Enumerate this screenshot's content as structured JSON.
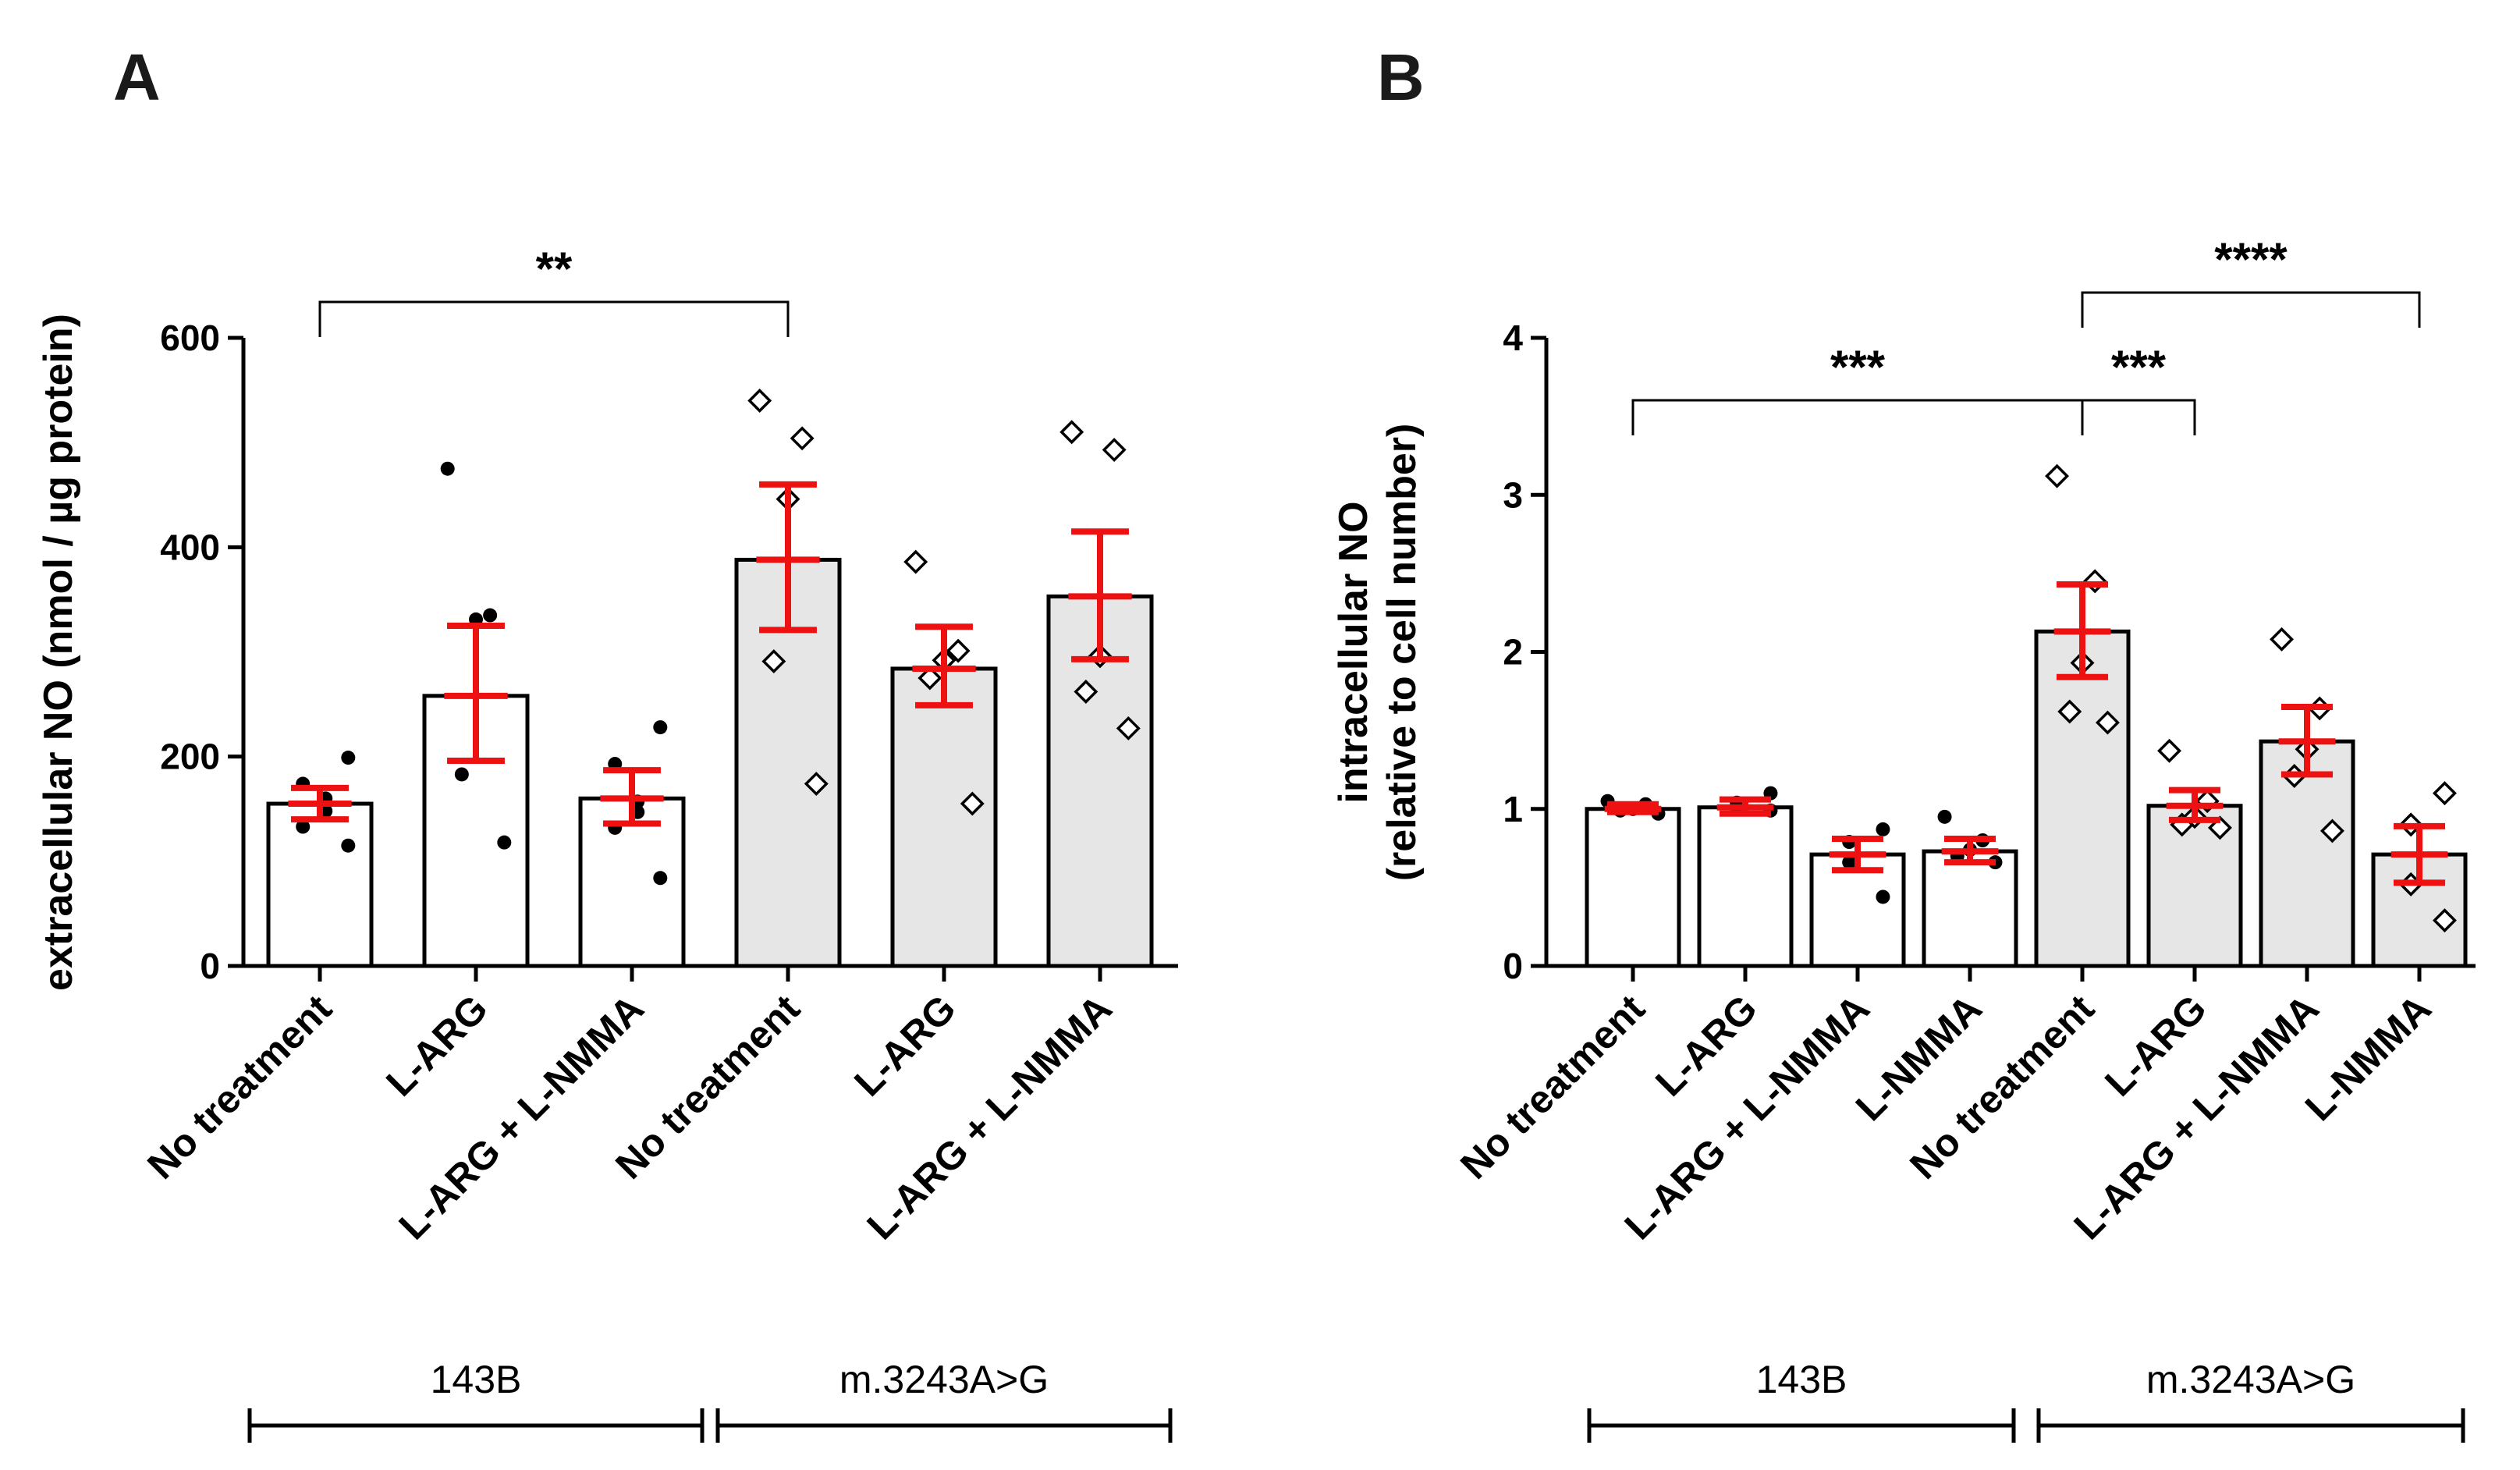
{
  "chart_data": [
    {
      "panel": "A",
      "type": "bar",
      "ylabel": "extracellular NO (nmol / µg protein)",
      "ylim": [
        0,
        600
      ],
      "yticks": [
        0,
        200,
        400,
        600
      ],
      "categories": [
        "No treatment",
        "L-ARG",
        "L-ARG + L-NMMA",
        "No treatment",
        "L-ARG",
        "L-ARG + L-NMMA"
      ],
      "values": [
        155,
        258,
        160,
        388,
        284,
        353
      ],
      "error": [
        [
          140,
          170
        ],
        [
          196,
          325
        ],
        [
          136,
          187
        ],
        [
          321,
          460
        ],
        [
          249,
          324
        ],
        [
          293,
          415
        ]
      ],
      "fills": [
        "#ffffff",
        "#ffffff",
        "#ffffff",
        "#e6e6e6",
        "#e6e6e6",
        "#e6e6e6"
      ],
      "points": [
        [
          115,
          133,
          148,
          160,
          174,
          199
        ],
        [
          118,
          183,
          331,
          335,
          475
        ],
        [
          84,
          132,
          147,
          157,
          193,
          228
        ],
        [
          174,
          291,
          446,
          504,
          540
        ],
        [
          155,
          275,
          292,
          301,
          386
        ],
        [
          227,
          262,
          296,
          493,
          510
        ]
      ],
      "markers": [
        "dot",
        "dot",
        "dot",
        "diamond",
        "diamond",
        "diamond"
      ],
      "groups": [
        {
          "label": "143B",
          "from": 0,
          "to": 2
        },
        {
          "label": "m.3243A>G",
          "from": 3,
          "to": 5
        }
      ],
      "significance": [
        {
          "from": 0,
          "to": 3,
          "label": "**"
        }
      ]
    },
    {
      "panel": "B",
      "type": "bar",
      "ylabel": [
        "intracellular NO",
        "(relative to cell number)"
      ],
      "ylim": [
        0,
        4
      ],
      "yticks": [
        0,
        1,
        2,
        3,
        4
      ],
      "categories": [
        "No treatment",
        "L-ARG",
        "L-ARG + L-NMMA",
        "L-NMMA",
        "No treatment",
        "L-ARG",
        "L-ARG + L-NMMA",
        "L-NMMA"
      ],
      "values": [
        1.0,
        1.01,
        0.71,
        0.73,
        2.13,
        1.02,
        1.43,
        0.71
      ],
      "error": [
        [
          0.98,
          1.03
        ],
        [
          0.97,
          1.06
        ],
        [
          0.61,
          0.81
        ],
        [
          0.66,
          0.81
        ],
        [
          1.84,
          2.43
        ],
        [
          0.93,
          1.12
        ],
        [
          1.22,
          1.65
        ],
        [
          0.53,
          0.89
        ]
      ],
      "fills": [
        "#ffffff",
        "#ffffff",
        "#ffffff",
        "#ffffff",
        "#e6e6e6",
        "#e6e6e6",
        "#e6e6e6",
        "#e6e6e6"
      ],
      "points": [
        [
          0.97,
          0.99,
          1.0,
          1.03,
          1.05
        ],
        [
          0.99,
          1.01,
          1.04,
          1.1
        ],
        [
          0.44,
          0.66,
          0.79,
          0.87
        ],
        [
          0.66,
          0.7,
          0.74,
          0.8,
          0.95
        ],
        [
          1.55,
          1.62,
          1.93,
          2.45,
          3.12
        ],
        [
          0.88,
          0.9,
          0.95,
          1.05,
          1.37
        ],
        [
          0.86,
          1.21,
          1.38,
          1.64,
          2.08
        ],
        [
          0.29,
          0.52,
          0.9,
          1.1
        ]
      ],
      "markers": [
        "dot",
        "dot",
        "dot",
        "dot",
        "diamond",
        "diamond",
        "diamond",
        "diamond"
      ],
      "groups": [
        {
          "label": "143B",
          "from": 0,
          "to": 3
        },
        {
          "label": "m.3243A>G",
          "from": 4,
          "to": 7
        }
      ],
      "significance": [
        {
          "from": 0,
          "to": 4,
          "label": "***"
        },
        {
          "from": 4,
          "to": 5,
          "label": "***"
        },
        {
          "from": 4,
          "to": 7,
          "label": "****"
        }
      ]
    }
  ],
  "panels": [
    "A",
    "B"
  ]
}
